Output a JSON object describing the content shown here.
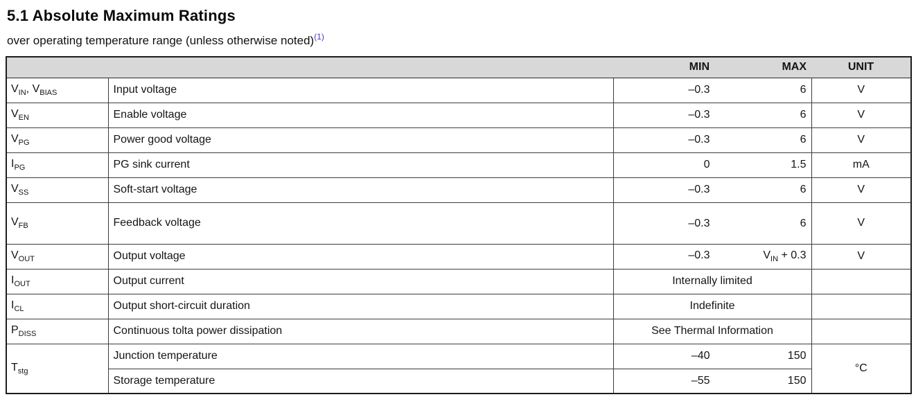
{
  "page": {
    "title": "5.1 Absolute Maximum Ratings",
    "subtitle": "over operating temperature range (unless otherwise noted)",
    "footnote_ref": "(1)"
  },
  "table": {
    "headers": {
      "min": "MIN",
      "max": "MAX",
      "unit": "UNIT"
    },
    "rows": [
      {
        "symbol": {
          "b1": "V",
          "s1": "IN",
          "sep": ", ",
          "b2": "V",
          "s2": "BIAS"
        },
        "param": "Input voltage",
        "min": "–0.3",
        "max": "6",
        "unit": "V"
      },
      {
        "symbol": {
          "b1": "V",
          "s1": "EN"
        },
        "param": "Enable voltage",
        "min": "–0.3",
        "max": "6",
        "unit": "V"
      },
      {
        "symbol": {
          "b1": "V",
          "s1": "PG"
        },
        "param": "Power good voltage",
        "min": "–0.3",
        "max": "6",
        "unit": "V"
      },
      {
        "symbol": {
          "b1": "I",
          "s1": "PG"
        },
        "param": "PG sink current",
        "min": "0",
        "max": "1.5",
        "unit": "mA"
      },
      {
        "symbol": {
          "b1": "V",
          "s1": "SS"
        },
        "param": "Soft-start voltage",
        "min": "–0.3",
        "max": "6",
        "unit": "V"
      },
      {
        "symbol": {
          "b1": "V",
          "s1": "FB"
        },
        "param": "Feedback voltage",
        "min": "–0.3",
        "max": "6",
        "unit": "V"
      },
      {
        "symbol": {
          "b1": "V",
          "s1": "OUT"
        },
        "param": "Output voltage",
        "min": "–0.3",
        "max_base": "V",
        "max_sub": "IN",
        "max_rest": " + 0.3",
        "unit": "V"
      },
      {
        "symbol": {
          "b1": "I",
          "s1": "OUT"
        },
        "param": "Output current",
        "span": "Internally limited",
        "unit": ""
      },
      {
        "symbol": {
          "b1": "I",
          "s1": "CL"
        },
        "param": "Output short-circuit duration",
        "span": "Indefinite",
        "unit": ""
      },
      {
        "symbol": {
          "b1": "P",
          "s1": "DISS"
        },
        "param": "Continuous tolta power dissipation",
        "span": "See Thermal Information",
        "unit": ""
      },
      {
        "symbol": {
          "b1": "T",
          "s1": "stg"
        },
        "param": "Junction temperature",
        "min": "–40",
        "max": "150",
        "unit": "°C"
      },
      {
        "param": "Storage temperature",
        "min": "–55",
        "max": "150"
      }
    ]
  }
}
